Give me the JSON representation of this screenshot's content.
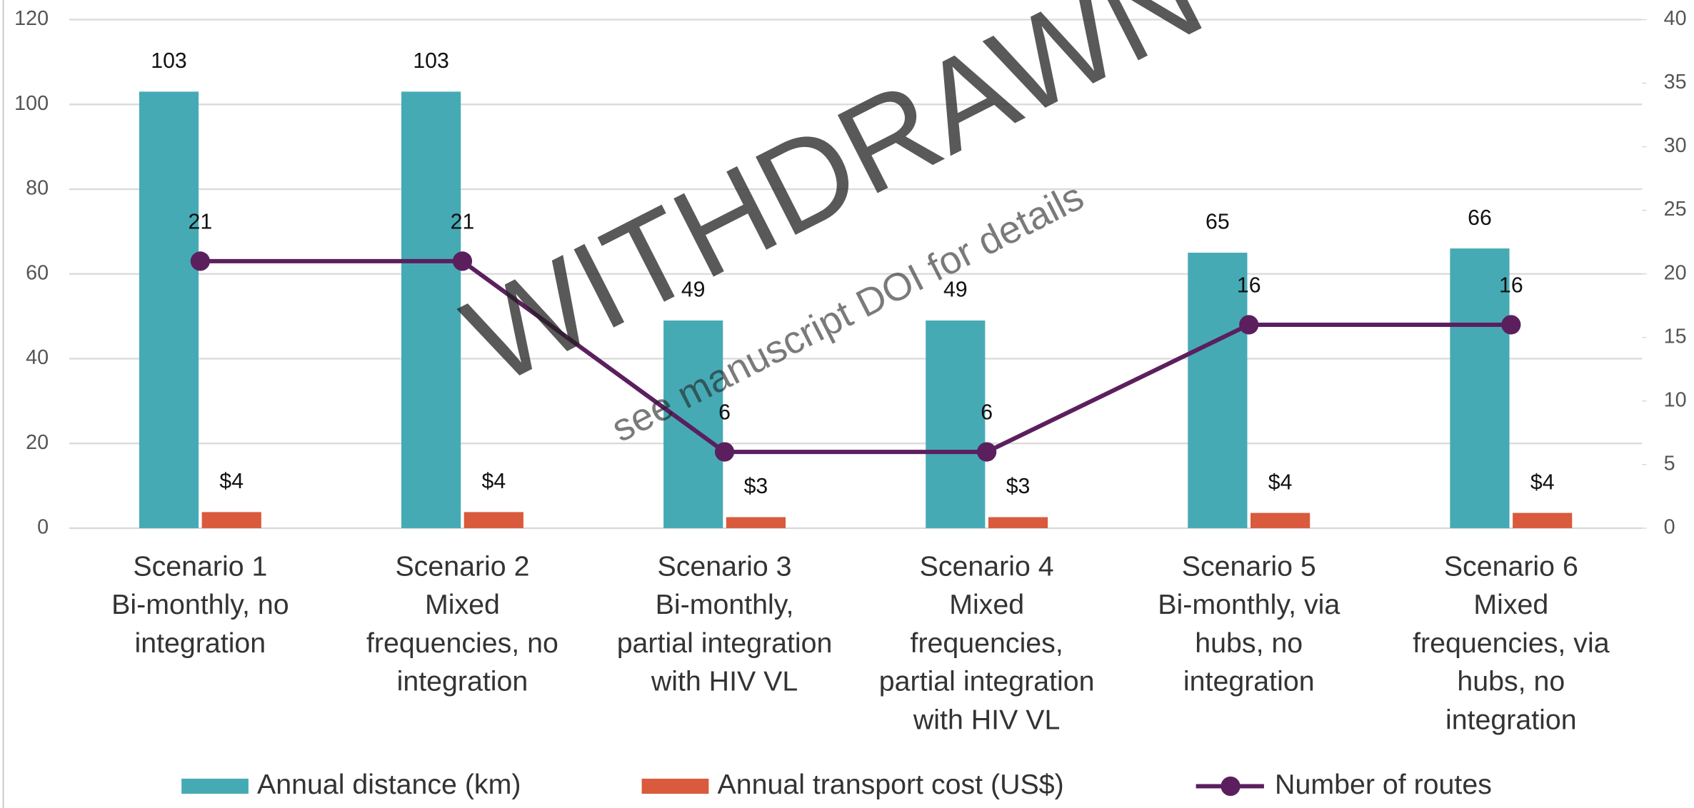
{
  "chart_data": {
    "type": "bar",
    "watermark": "WITHDRAWN",
    "watermark_note": "see manuscript DOI for details",
    "categories": [
      [
        "Scenario 1",
        "Bi-monthly, no",
        "integration"
      ],
      [
        "Scenario 2",
        "Mixed",
        "frequencies, no",
        "integration"
      ],
      [
        "Scenario 3",
        "Bi-monthly,",
        "partial integration",
        "with HIV VL"
      ],
      [
        "Scenario 4",
        "Mixed",
        "frequencies,",
        "partial integration",
        "with HIV VL"
      ],
      [
        "Scenario 5",
        "Bi-monthly, via",
        "hubs, no",
        "integration"
      ],
      [
        "Scenario 6",
        "Mixed",
        "frequencies, via",
        "hubs, no",
        "integration"
      ]
    ],
    "series": [
      {
        "name": "Annual distance (km)",
        "type": "bar",
        "color": "#46aab5",
        "values": [
          103,
          103,
          49,
          49,
          65,
          66
        ]
      },
      {
        "name": "Annual transport cost (US$)",
        "type": "bar",
        "color": "#d95a3c",
        "values": [
          3.8,
          3.8,
          2.6,
          2.6,
          3.6,
          3.6
        ],
        "value_labels": [
          "$4",
          "$4",
          "$3",
          "$3",
          "$4",
          "$4"
        ]
      },
      {
        "name": "Number of routes",
        "type": "line",
        "axis": "y2",
        "color": "#5b1f5e",
        "values": [
          21,
          21,
          6,
          6,
          16,
          16
        ]
      }
    ],
    "ylim": [
      0,
      120
    ],
    "yticks": [
      0,
      20,
      40,
      60,
      80,
      100,
      120
    ],
    "y2lim": [
      0,
      40
    ],
    "y2ticks": [
      0,
      5,
      10,
      15,
      20,
      25,
      30,
      35,
      40
    ],
    "grid": true,
    "legend": "bottom"
  }
}
